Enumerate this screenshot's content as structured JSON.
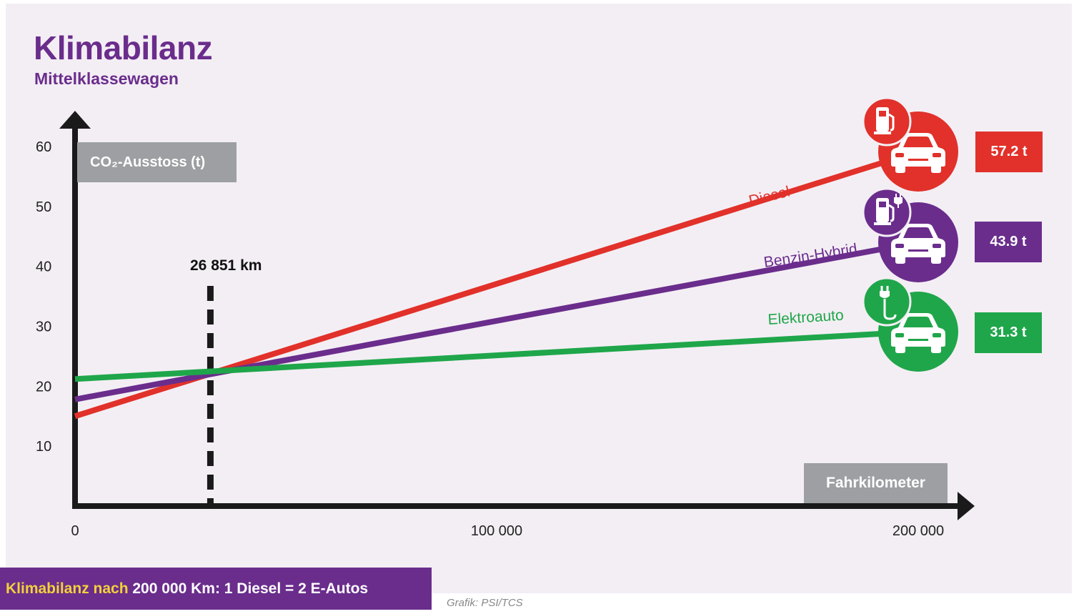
{
  "title": "Klimabilanz",
  "subtitle": "Mittelklassewagen",
  "footer": {
    "part1": "Klimabilanz nach",
    "part2": " 200 000 Km: 1 Diesel = 2 E-Autos"
  },
  "credit": "Grafik: PSI/TCS",
  "icons": [
    "fuel-pump-icon",
    "car-icon",
    "hybrid-pump-plug-icon",
    "electric-plug-icon"
  ],
  "colors": {
    "diesel": "#e1312a",
    "hybrid": "#6a2d8c",
    "electric": "#1fa64a",
    "axis": "#1a1a1a",
    "label_box": "#9d9fa2"
  },
  "chart_data": {
    "type": "line",
    "title": "Klimabilanz",
    "subtitle": "Mittelklassewagen",
    "xlabel": "Fahrkilometer",
    "ylabel": "CO₂-Ausstoss (t)",
    "xlim": [
      0,
      200000
    ],
    "ylim": [
      0,
      60
    ],
    "x_ticks": [
      "0",
      "100 000",
      "200 000"
    ],
    "x_tick_values": [
      0,
      100000,
      200000
    ],
    "y_ticks": [
      "10",
      "20",
      "30",
      "40",
      "50",
      "60"
    ],
    "y_tick_values": [
      10,
      20,
      30,
      40,
      50,
      60
    ],
    "series": [
      {
        "name": "Diesel",
        "x": [
          0,
          200000
        ],
        "y": [
          15.0,
          57.2
        ],
        "end_label": "57.2 t",
        "color": "#e1312a"
      },
      {
        "name": "Benzin-Hybrid",
        "x": [
          0,
          200000
        ],
        "y": [
          17.8,
          43.9
        ],
        "end_label": "43.9 t",
        "color": "#6a2d8c"
      },
      {
        "name": "Elektroauto",
        "x": [
          0,
          200000
        ],
        "y": [
          21.2,
          31.3
        ],
        "end_label": "31.3 t",
        "color": "#1fa64a"
      }
    ],
    "annotations": [
      {
        "label": "26 851 km",
        "x": 26851,
        "style": "dashed vertical line"
      }
    ]
  }
}
